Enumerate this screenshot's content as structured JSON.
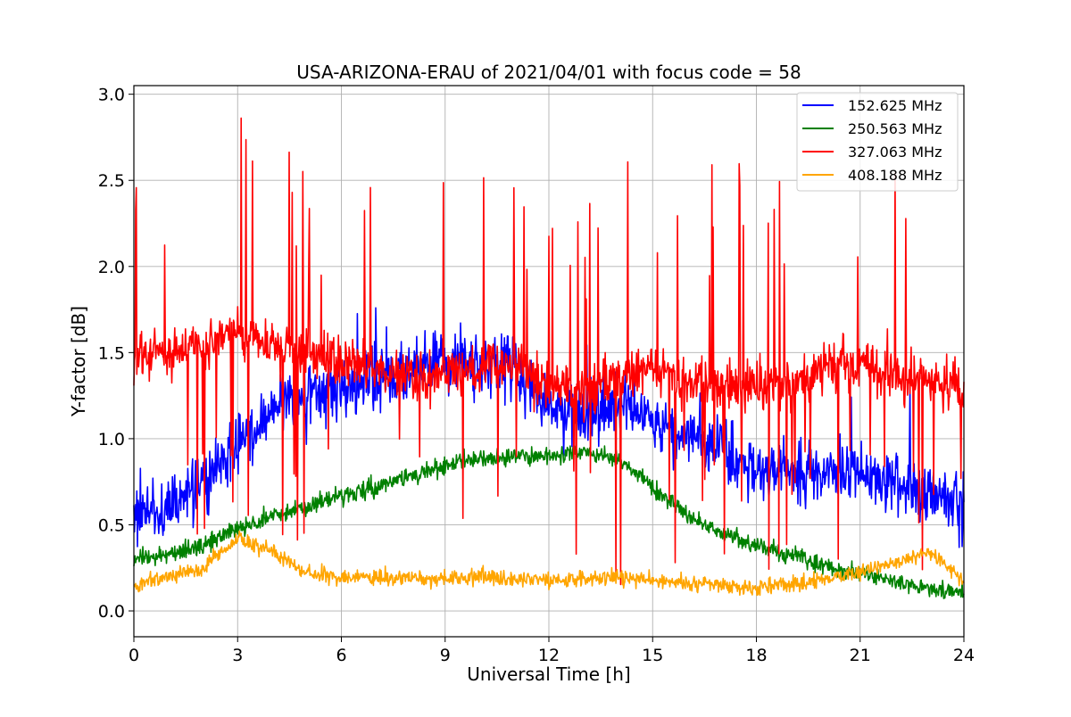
{
  "chart_data": {
    "type": "line",
    "title": "USA-ARIZONA-ERAU of 2021/04/01 with focus code = 58",
    "xlabel": "Universal Time [h]",
    "ylabel": "Y-factor [dB]",
    "xlim": [
      0,
      24
    ],
    "ylim": [
      -0.15,
      3.05
    ],
    "xticks": [
      0,
      3,
      6,
      9,
      12,
      15,
      18,
      21,
      24
    ],
    "xtick_labels": [
      "0",
      "3",
      "6",
      "9",
      "12",
      "15",
      "18",
      "21",
      "24"
    ],
    "yticks": [
      0.0,
      0.5,
      1.0,
      1.5,
      2.0,
      2.5,
      3.0
    ],
    "ytick_labels": [
      "0.0",
      "0.5",
      "1.0",
      "1.5",
      "2.0",
      "2.5",
      "3.0"
    ],
    "grid": true,
    "legend_position": "top-right",
    "x": [
      0,
      1,
      2,
      3,
      4,
      5,
      6,
      7,
      8,
      9,
      10,
      11,
      12,
      13,
      14,
      15,
      16,
      17,
      18,
      19,
      20,
      21,
      22,
      23,
      24
    ],
    "series": [
      {
        "name": "152.625 MHz",
        "color": "#0000ff",
        "values": [
          0.55,
          0.6,
          0.75,
          0.95,
          1.15,
          1.25,
          1.3,
          1.35,
          1.4,
          1.45,
          1.45,
          1.4,
          1.2,
          1.15,
          1.2,
          1.1,
          1.0,
          0.95,
          0.85,
          0.8,
          0.8,
          0.8,
          0.75,
          0.7,
          0.6
        ]
      },
      {
        "name": "250.563 MHz",
        "color": "#008000",
        "values": [
          0.3,
          0.33,
          0.38,
          0.48,
          0.55,
          0.6,
          0.67,
          0.72,
          0.78,
          0.85,
          0.88,
          0.9,
          0.9,
          0.92,
          0.88,
          0.72,
          0.55,
          0.45,
          0.38,
          0.32,
          0.25,
          0.22,
          0.17,
          0.14,
          0.1
        ]
      },
      {
        "name": "327.063 MHz",
        "color": "#ff0000",
        "values": [
          1.45,
          1.5,
          1.55,
          1.6,
          1.55,
          1.5,
          1.45,
          1.4,
          1.35,
          1.38,
          1.42,
          1.45,
          1.3,
          1.28,
          1.35,
          1.4,
          1.35,
          1.3,
          1.3,
          1.3,
          1.4,
          1.45,
          1.35,
          1.35,
          1.3
        ]
      },
      {
        "name": "408.188 MHz",
        "color": "#ffa500",
        "values": [
          0.15,
          0.2,
          0.25,
          0.42,
          0.35,
          0.22,
          0.2,
          0.19,
          0.19,
          0.19,
          0.2,
          0.19,
          0.18,
          0.19,
          0.2,
          0.17,
          0.16,
          0.15,
          0.14,
          0.15,
          0.18,
          0.22,
          0.28,
          0.35,
          0.18
        ]
      }
    ]
  }
}
